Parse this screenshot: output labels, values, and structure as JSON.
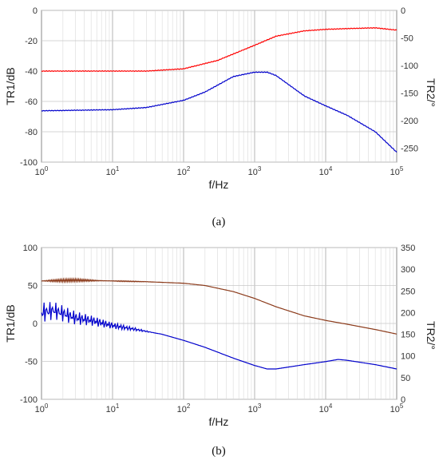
{
  "chart_data": [
    {
      "type": "line",
      "caption": "(a)",
      "caption_letter": "a",
      "xlabel": "f/Hz",
      "ylabel_left": "TR1/dB",
      "ylabel_right": "TR2/°",
      "xscale": "log",
      "xlim": [
        1,
        100000
      ],
      "ylim_left": [
        -100,
        0
      ],
      "ylim_right": [
        -275,
        0
      ],
      "yticks_left": [
        0,
        -20,
        -40,
        -60,
        -80,
        -100
      ],
      "yticks_right": [
        0,
        -50,
        -100,
        -150,
        -200,
        -250
      ],
      "xticks": [
        {
          "base": "10",
          "exp": "0"
        },
        {
          "base": "10",
          "exp": "1"
        },
        {
          "base": "10",
          "exp": "2"
        },
        {
          "base": "10",
          "exp": "3"
        },
        {
          "base": "10",
          "exp": "4"
        },
        {
          "base": "10",
          "exp": "5"
        }
      ],
      "grid": true,
      "series": [
        {
          "axis": "left",
          "color": "#ff0000",
          "x": [
            1,
            10,
            30,
            100,
            300,
            1000,
            2000,
            5000,
            10000,
            20000,
            50000,
            100000
          ],
          "y": [
            -40,
            -40,
            -40,
            -38.5,
            -33,
            -23,
            -17,
            -13.5,
            -12.5,
            -12,
            -11.5,
            -13
          ]
        },
        {
          "axis": "right",
          "color": "#0000cc",
          "x": [
            1,
            10,
            30,
            100,
            200,
            500,
            1000,
            1500,
            2000,
            5000,
            10000,
            20000,
            50000,
            100000
          ],
          "y": [
            -182,
            -180,
            -176,
            -163,
            -148,
            -120,
            -112,
            -112,
            -118,
            -155,
            -173,
            -190,
            -220,
            -257
          ]
        }
      ]
    },
    {
      "type": "line",
      "caption": "(b)",
      "caption_letter": "b",
      "xlabel": "f/Hz",
      "ylabel_left": "TR1/dB",
      "ylabel_right": "TR2/°",
      "xscale": "log",
      "xlim": [
        1,
        100000
      ],
      "ylim_left": [
        -100,
        100
      ],
      "ylim_right": [
        0,
        350
      ],
      "yticks_left": [
        100,
        50,
        0,
        -50,
        -100
      ],
      "yticks_right": [
        350,
        300,
        250,
        200,
        150,
        100,
        50,
        0
      ],
      "xticks": [
        {
          "base": "10",
          "exp": "0"
        },
        {
          "base": "10",
          "exp": "1"
        },
        {
          "base": "10",
          "exp": "2"
        },
        {
          "base": "10",
          "exp": "3"
        },
        {
          "base": "10",
          "exp": "4"
        },
        {
          "base": "10",
          "exp": "5"
        }
      ],
      "grid": true,
      "series": [
        {
          "axis": "left",
          "color": "#8b3a1a",
          "x": [
            1,
            3,
            10,
            30,
            100,
            200,
            500,
            1000,
            2000,
            5000,
            10000,
            20000,
            50000,
            100000
          ],
          "y": [
            56,
            57,
            56,
            55,
            53,
            50,
            42,
            33,
            22,
            10,
            4,
            -1,
            -8,
            -14
          ]
        },
        {
          "axis": "right",
          "color": "#0000cc",
          "x": [
            1,
            1.5,
            2,
            3,
            5,
            10,
            20,
            50,
            100,
            200,
            500,
            1000,
            1500,
            2000,
            5000,
            10000,
            15000,
            20000,
            50000,
            100000
          ],
          "y": [
            200,
            205,
            198,
            188,
            182,
            170,
            162,
            150,
            136,
            120,
            95,
            78,
            70,
            70,
            80,
            87,
            92,
            90,
            80,
            70
          ]
        }
      ]
    }
  ]
}
